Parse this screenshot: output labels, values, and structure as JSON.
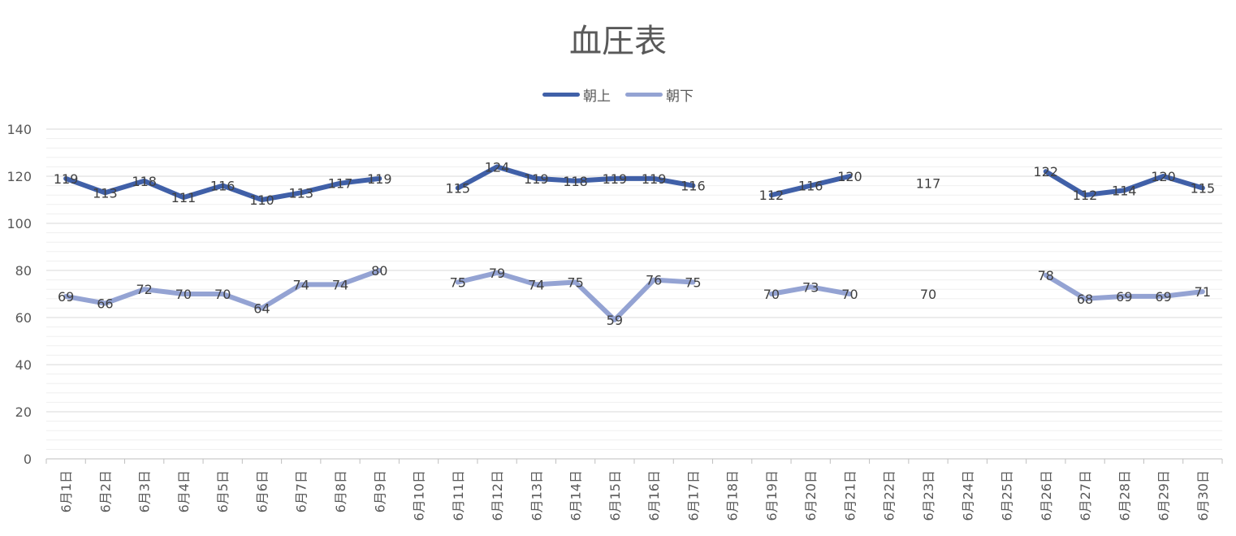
{
  "chart_data": {
    "type": "line",
    "title": "血圧表",
    "xlabel": "",
    "ylabel": "",
    "ylim": [
      0,
      140
    ],
    "yticks": [
      0,
      20,
      40,
      60,
      80,
      100,
      120,
      140
    ],
    "minor_grid_step": 4,
    "grid": true,
    "legend": "top",
    "categories": [
      "6月1日",
      "6月2日",
      "6月3日",
      "6月4日",
      "6月5日",
      "6月6日",
      "6月7日",
      "6月8日",
      "6月9日",
      "6月10日",
      "6月11日",
      "6月12日",
      "6月13日",
      "6月14日",
      "6月15日",
      "6月16日",
      "6月17日",
      "6月18日",
      "6月19日",
      "6月20日",
      "6月21日",
      "6月22日",
      "6月23日",
      "6月24日",
      "6月25日",
      "6月26日",
      "6月27日",
      "6月28日",
      "6月29日",
      "6月30日"
    ],
    "series": [
      {
        "name": "朝上",
        "color": "#4060a8",
        "values": [
          119,
          113,
          118,
          111,
          116,
          110,
          113,
          117,
          119,
          null,
          115,
          124,
          119,
          118,
          119,
          119,
          116,
          null,
          112,
          116,
          120,
          null,
          117,
          null,
          null,
          122,
          112,
          114,
          120,
          115
        ]
      },
      {
        "name": "朝下",
        "color": "#94a3d3",
        "values": [
          69,
          66,
          72,
          70,
          70,
          64,
          74,
          74,
          80,
          null,
          75,
          79,
          74,
          75,
          59,
          76,
          75,
          null,
          70,
          73,
          70,
          null,
          70,
          null,
          null,
          78,
          68,
          69,
          69,
          71
        ]
      }
    ]
  }
}
